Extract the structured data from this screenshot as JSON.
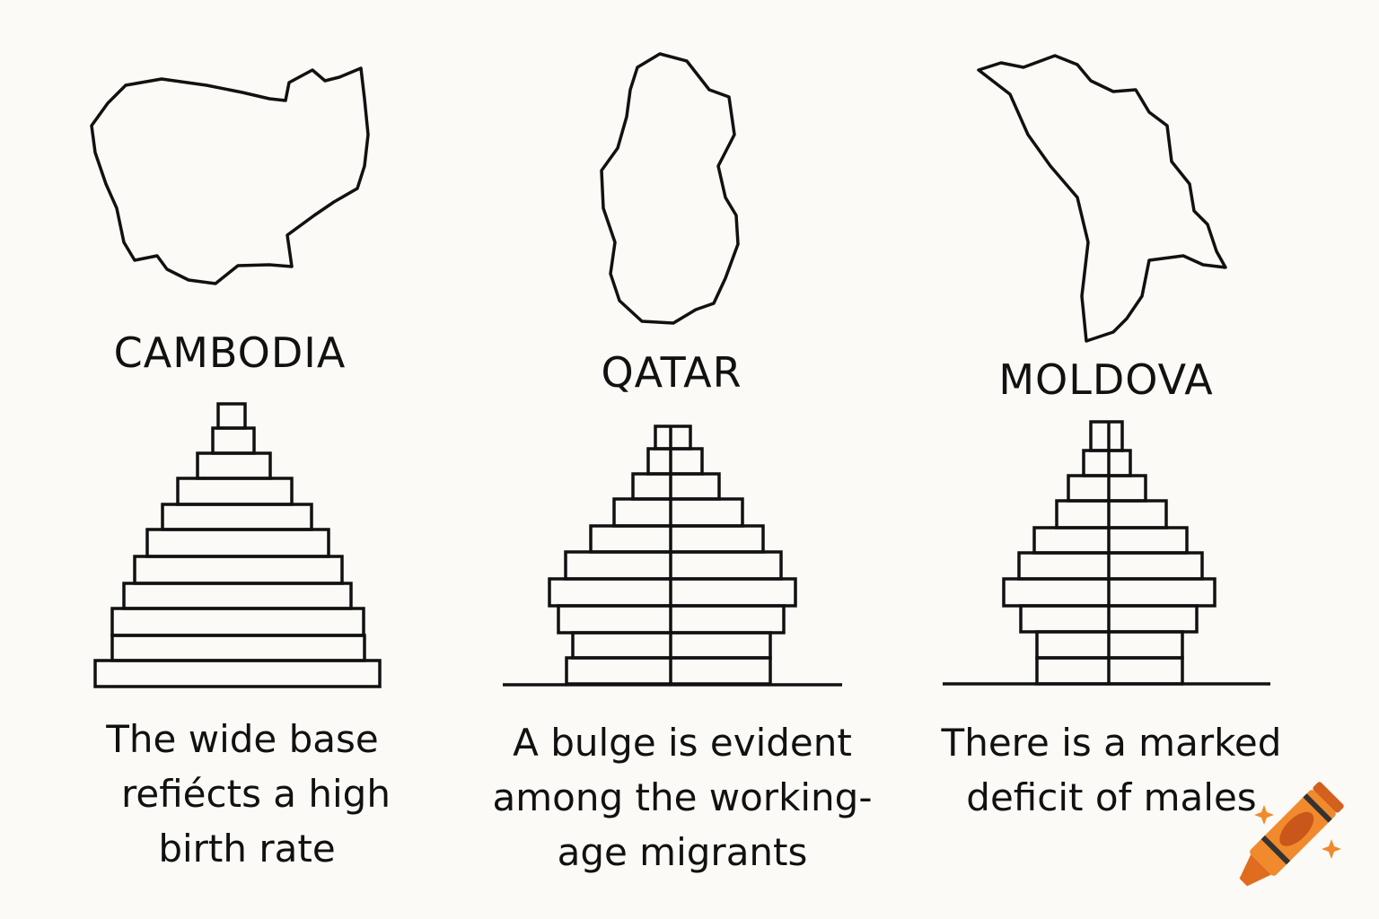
{
  "panels": [
    {
      "country": "CAMBODIA",
      "caption": [
        "The wide base",
        "refiécts a high",
        "birth rate"
      ]
    },
    {
      "country": "QATAR",
      "caption": [
        "A bulge is evident",
        "among the working-",
        "age migrants"
      ]
    },
    {
      "country": "MOLDOVA",
      "caption": [
        "There is a marked",
        "deficit of males"
      ]
    }
  ],
  "colors": {
    "ink": "#111111",
    "background": "#fbfaf6",
    "crayon": "#f08a2c",
    "crayon_dark": "#c9561a"
  },
  "icons": [
    "cambodia-map-outline",
    "qatar-map-outline",
    "moldova-map-outline",
    "crayon-icon",
    "sparkle-icon"
  ]
}
